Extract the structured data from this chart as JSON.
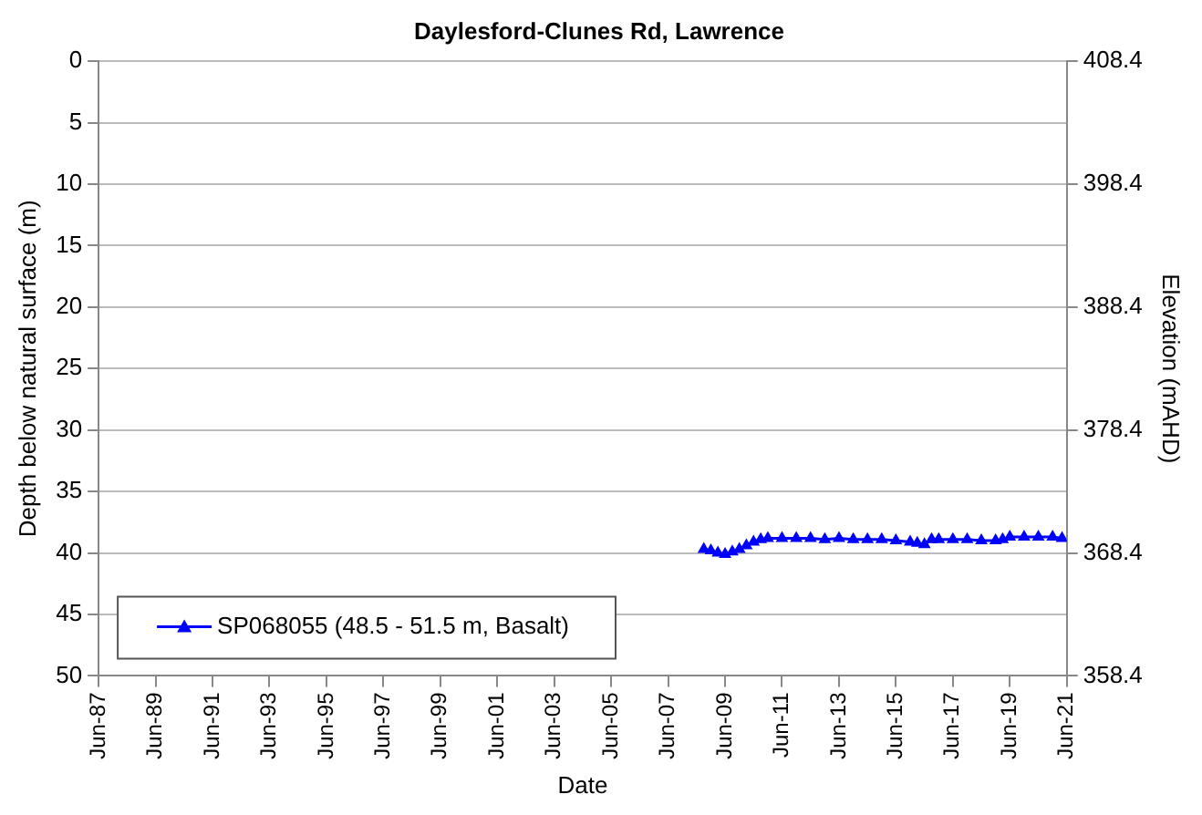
{
  "chart_data": {
    "type": "line",
    "title": "Daylesford-Clunes Rd, Lawrence",
    "xlabel": "Date",
    "ylabel": "Depth below natural surface (m)",
    "y2label": "Elevation (mAHD)",
    "x": [
      "2008-09",
      "2008-12",
      "2009-03",
      "2009-06",
      "2009-09",
      "2009-12",
      "2010-03",
      "2010-06",
      "2010-09",
      "2010-12",
      "2011-06",
      "2011-12",
      "2012-06",
      "2012-12",
      "2013-06",
      "2013-12",
      "2014-06",
      "2014-12",
      "2015-06",
      "2015-12",
      "2016-03",
      "2016-06",
      "2016-09",
      "2016-12",
      "2017-06",
      "2017-12",
      "2018-06",
      "2018-12",
      "2019-03",
      "2019-06",
      "2019-12",
      "2020-06",
      "2020-12",
      "2021-04"
    ],
    "series": [
      {
        "name": "SP068055 (48.5 - 51.5 m, Basalt)",
        "color": "#0000ff",
        "values": [
          39.7,
          39.8,
          40.0,
          40.1,
          39.9,
          39.7,
          39.4,
          39.1,
          38.9,
          38.8,
          38.8,
          38.8,
          38.8,
          38.9,
          38.8,
          38.9,
          38.9,
          38.9,
          39.0,
          39.1,
          39.2,
          39.3,
          38.9,
          38.9,
          38.9,
          38.9,
          39.0,
          39.0,
          38.9,
          38.7,
          38.7,
          38.7,
          38.7,
          38.8
        ]
      }
    ],
    "xlim": [
      "1987-06",
      "2021-06"
    ],
    "xticks": [
      {
        "value": "1987-06",
        "label": "Jun-87"
      },
      {
        "value": "1989-06",
        "label": "Jun-89"
      },
      {
        "value": "1991-06",
        "label": "Jun-91"
      },
      {
        "value": "1993-06",
        "label": "Jun-93"
      },
      {
        "value": "1995-06",
        "label": "Jun-95"
      },
      {
        "value": "1997-06",
        "label": "Jun-97"
      },
      {
        "value": "1999-06",
        "label": "Jun-99"
      },
      {
        "value": "2001-06",
        "label": "Jun-01"
      },
      {
        "value": "2003-06",
        "label": "Jun-03"
      },
      {
        "value": "2005-06",
        "label": "Jun-05"
      },
      {
        "value": "2007-06",
        "label": "Jun-07"
      },
      {
        "value": "2009-06",
        "label": "Jun-09"
      },
      {
        "value": "2011-06",
        "label": "Jun-11"
      },
      {
        "value": "2013-06",
        "label": "Jun-13"
      },
      {
        "value": "2015-06",
        "label": "Jun-15"
      },
      {
        "value": "2017-06",
        "label": "Jun-17"
      },
      {
        "value": "2019-06",
        "label": "Jun-19"
      },
      {
        "value": "2021-06",
        "label": "Jun-21"
      }
    ],
    "ylim": [
      50,
      0
    ],
    "yticks": [
      0,
      5,
      10,
      15,
      20,
      25,
      30,
      35,
      40,
      45,
      50
    ],
    "y2lim": [
      358.4,
      408.4
    ],
    "y2ticks": [
      408.4,
      398.4,
      388.4,
      378.4,
      368.4,
      358.4
    ],
    "grid": "y",
    "legend": "bottom left",
    "marker": "triangle",
    "line_style": "solid"
  }
}
